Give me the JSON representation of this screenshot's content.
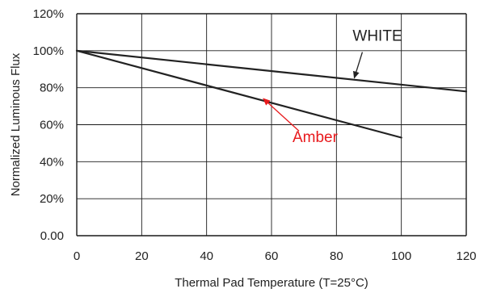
{
  "chart_data": {
    "type": "line",
    "xlabel": "Thermal Pad Temperature (T=25°C)",
    "ylabel": "Normalized Luminous Flux",
    "xlim": [
      0,
      120
    ],
    "ylim": [
      0,
      120
    ],
    "x_ticks": [
      "0",
      "20",
      "40",
      "60",
      "80",
      "100",
      "120"
    ],
    "y_ticks": [
      "0.00",
      "20%",
      "40%",
      "60%",
      "80%",
      "100%",
      "120%"
    ],
    "grid": true,
    "series": [
      {
        "name": "WHITE",
        "color": "#222222",
        "x": [
          0,
          120
        ],
        "y": [
          100,
          78
        ]
      },
      {
        "name": "Amber",
        "color": "#222222",
        "x": [
          0,
          100
        ],
        "y": [
          100,
          53
        ]
      }
    ],
    "annotations": [
      {
        "text": "WHITE",
        "color": "#222222",
        "points_to": {
          "series": "WHITE",
          "x": 85
        }
      },
      {
        "text": "Amber",
        "color": "#e8191c",
        "points_to": {
          "series": "Amber",
          "x": 57
        }
      }
    ]
  }
}
